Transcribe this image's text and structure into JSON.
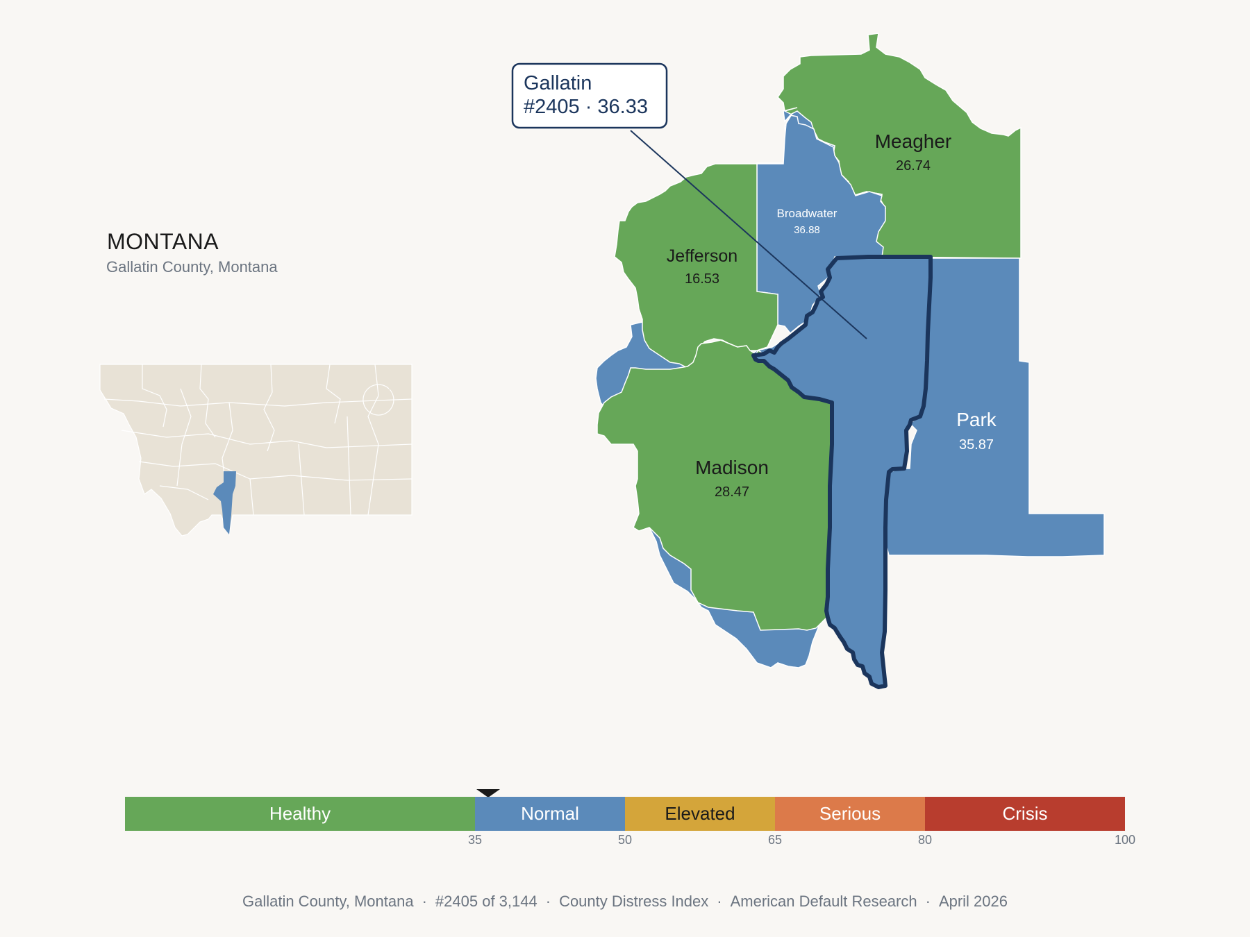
{
  "title": "MONTANA",
  "subtitle": "Gallatin County, Montana",
  "callout": {
    "line1": "Gallatin",
    "line2": "#2405 · 36.33"
  },
  "counties": [
    {
      "name": "Meagher",
      "value": "26.74",
      "category": "Healthy"
    },
    {
      "name": "Broadwater",
      "value": "36.88",
      "category": "Normal"
    },
    {
      "name": "Jefferson",
      "value": "16.53",
      "category": "Healthy"
    },
    {
      "name": "Madison",
      "value": "28.47",
      "category": "Healthy"
    },
    {
      "name": "Park",
      "value": "35.87",
      "category": "Normal"
    },
    {
      "name": "Gallatin",
      "value": "36.33",
      "category": "Normal",
      "highlighted": true
    }
  ],
  "scale": {
    "segments": [
      {
        "label": "Healthy",
        "from": 0,
        "to": 35,
        "color": "#66a758"
      },
      {
        "label": "Normal",
        "from": 35,
        "to": 50,
        "color": "#5b8aba"
      },
      {
        "label": "Elevated",
        "from": 50,
        "to": 65,
        "color": "#d4a53a"
      },
      {
        "label": "Serious",
        "from": 65,
        "to": 80,
        "color": "#dc7a4a"
      },
      {
        "label": "Crisis",
        "from": 80,
        "to": 100,
        "color": "#b83d2e"
      }
    ],
    "ticks": [
      "35",
      "50",
      "65",
      "80",
      "100"
    ],
    "marker_value": 36.33
  },
  "footer": {
    "items": [
      "Gallatin County, Montana",
      "#2405 of 3,144",
      "County Distress Index",
      "American Default Research",
      "April 2026"
    ],
    "separator": "·"
  },
  "colors": {
    "healthy": "#66a758",
    "normal": "#5b8aba",
    "highlight_outline": "#1b355c",
    "inset_base": "#e8e2d6"
  }
}
